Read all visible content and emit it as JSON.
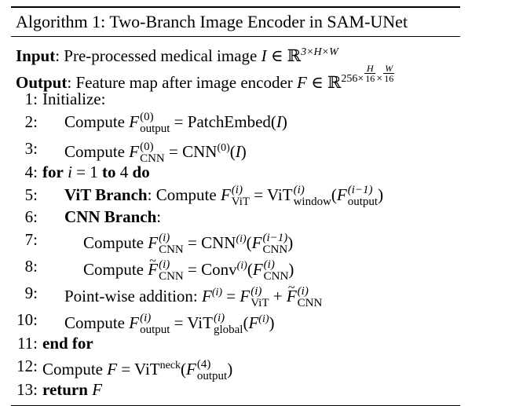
{
  "title": "Algorithm 1: Two-Branch Image Encoder in SAM-UNet",
  "input": {
    "label": "Input",
    "text": ": Pre-processed medical image ",
    "var": "I",
    "in": " ∈ ℝ",
    "dims": "3×H×W"
  },
  "output": {
    "label": "Output",
    "text": ": Feature map after image encoder ",
    "var": "F",
    "in": " ∈ ℝ",
    "dims_prefix": "256×",
    "frac1_num": "H",
    "frac1_den": "16",
    "times": "×",
    "frac2_num": "W",
    "frac2_den": "16"
  },
  "steps": [
    {
      "num": "1:",
      "text": "Initialize:"
    },
    {
      "num": "2:",
      "pre": "Compute ",
      "F": "F",
      "sup": "(0)",
      "sub": "output",
      "eq": " = PatchEmbed(",
      "arg": "I",
      "post": ")"
    },
    {
      "num": "3:",
      "pre": "Compute ",
      "F": "F",
      "sup": "(0)",
      "sub": "CNN",
      "eq": " = CNN",
      "fsup": "(0)",
      "open": "(",
      "arg": "I",
      "post": ")"
    },
    {
      "num": "4:",
      "kw1": "for",
      "var": "i",
      "mid": " = 1 ",
      "kw2": "to",
      "end": " 4 ",
      "kw3": "do"
    },
    {
      "num": "5:",
      "head": "ViT Branch",
      "pre": ": Compute ",
      "F": "F",
      "sup": "(i)",
      "sub": "ViT",
      "eq": " = ViT",
      "fsup": "(i)",
      "fsub": "window",
      "open": "(",
      "argF": "F",
      "argsup": "(i−1)",
      "argsub": "output",
      "post": ")"
    },
    {
      "num": "6:",
      "head": "CNN Branch",
      "post": ":"
    },
    {
      "num": "7:",
      "pre": "Compute ",
      "F": "F",
      "sup": "(i)",
      "sub": "CNN",
      "eq": " = CNN",
      "fsup": "(i)",
      "open": "(",
      "argF": "F",
      "argsup": "(i−1)",
      "argsub": "CNN",
      "post": ")"
    },
    {
      "num": "8:",
      "pre": "Compute ",
      "F": "F",
      "sup": "(i)",
      "sub": "CNN",
      "eq": " = Conv",
      "fsup": "(i)",
      "open": "(",
      "argF": "F",
      "argsup": "(i)",
      "argsub": "CNN",
      "post": ")"
    },
    {
      "num": "9:",
      "pre": "Point-wise addition: ",
      "F": "F",
      "sup": "(i)",
      "eq": " = ",
      "aF": "F",
      "asup": "(i)",
      "asub": "ViT",
      "plus": " + ",
      "bF": "F",
      "bsup": "(i)",
      "bsub": "CNN"
    },
    {
      "num": "10:",
      "pre": "Compute ",
      "F": "F",
      "sup": "(i)",
      "sub": "output",
      "eq": " = ViT",
      "fsup": "(i)",
      "fsub": "global",
      "open": "(",
      "argF": "F",
      "argsup": "(i)",
      "post": ")"
    },
    {
      "num": "11:",
      "kw1": "end for"
    },
    {
      "num": "12:",
      "pre": "Compute ",
      "F": "F",
      "eq": " = ViT",
      "fsup": "neck",
      "open": "(",
      "argF": "F",
      "argsup": "(4)",
      "argsub": "output",
      "post": ")"
    },
    {
      "num": "13:",
      "kw1": "return",
      "var": "F"
    }
  ]
}
